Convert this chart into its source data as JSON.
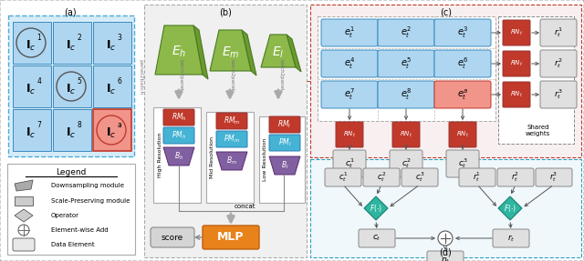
{
  "bg_color": "#ebebeb",
  "panel_a_label": "(a)",
  "panel_b_label": "(b)",
  "panel_c_label": "(c)",
  "panel_d_label": "(d)",
  "blue_cell": "#aed6f1",
  "pink_cell": "#f1948a",
  "green_encoder": "#8db94a",
  "green_encoder_dark": "#6a9a30",
  "red_rm": "#c0392b",
  "blue_pm": "#45b3d4",
  "purple_b": "#8060a0",
  "orange_mlp": "#e8821a",
  "gray_box": "#d0d0d0",
  "teal_f": "#2eb5a0",
  "arrow_color": "#888888",
  "white": "#ffffff",
  "light_gray": "#e0e0e0"
}
